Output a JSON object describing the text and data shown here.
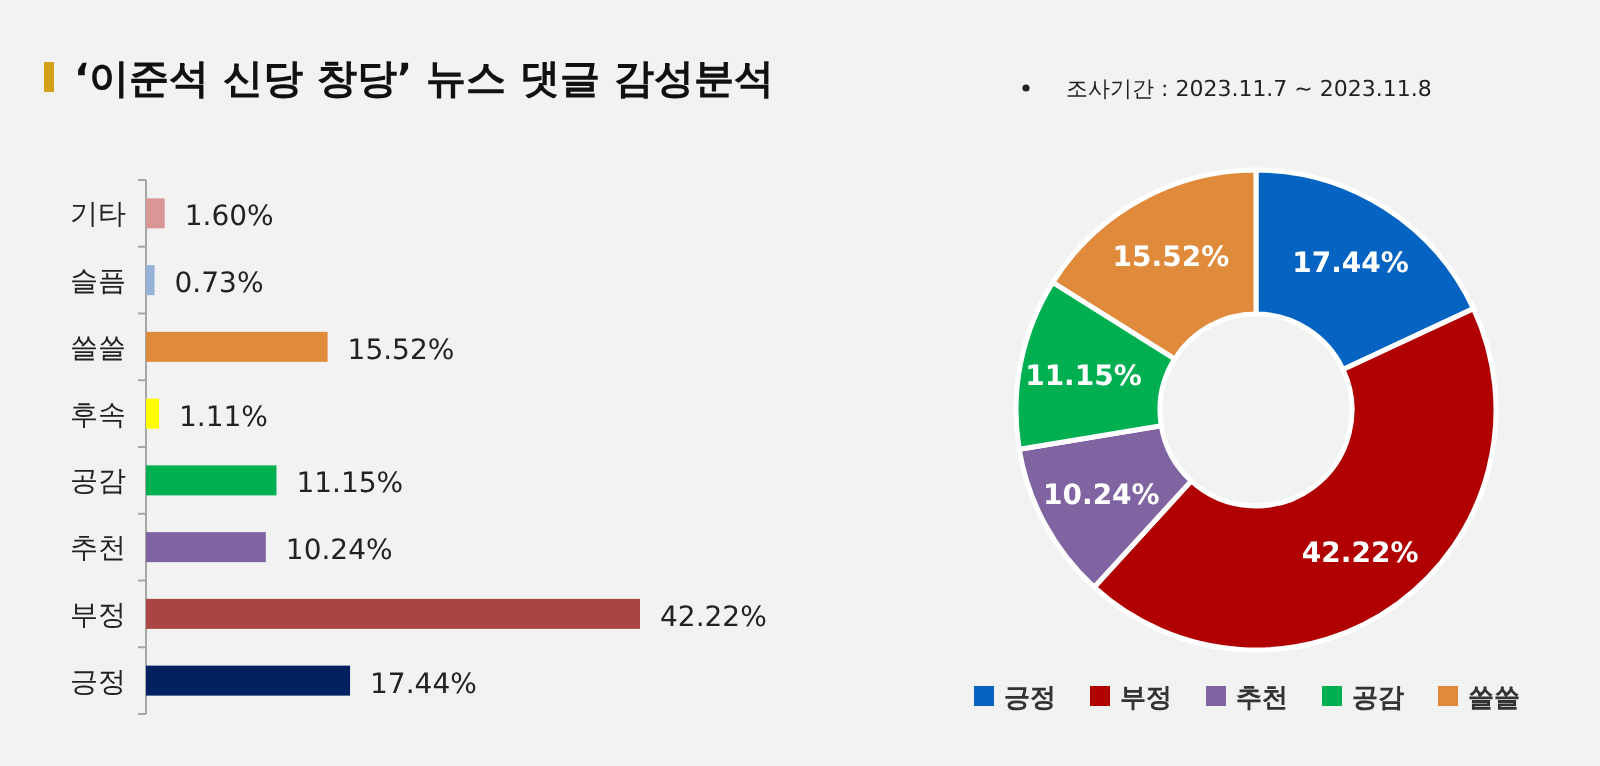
{
  "chart_data": [
    {
      "type": "bar",
      "title": "‘이준석 신당 창당’ 뉴스 댓글 감성분석",
      "orientation": "horizontal",
      "categories": [
        "기타",
        "슬픔",
        "쓸쓸",
        "후속",
        "공감",
        "추천",
        "부정",
        "긍정"
      ],
      "values": [
        1.6,
        0.73,
        15.52,
        1.11,
        11.15,
        10.24,
        42.22,
        17.44
      ],
      "colors": [
        "#d99694",
        "#95b3d7",
        "#e08a3c",
        "#ffff00",
        "#00b050",
        "#8064a2",
        "#a94643",
        "#002060"
      ],
      "value_labels": [
        "1.60%",
        "0.73%",
        "15.52%",
        "1.11%",
        "11.15%",
        "10.24%",
        "42.22%",
        "17.44%"
      ]
    },
    {
      "type": "donut",
      "annotations": [
        "조사기간 : 2023.11.7 ~ 2023.11.8"
      ],
      "categories": [
        "긍정",
        "부정",
        "추천",
        "공감",
        "쓸쓸"
      ],
      "values": [
        17.44,
        42.22,
        10.24,
        11.15,
        15.52
      ],
      "colors": [
        "#0563c1",
        "#b00000",
        "#8064a2",
        "#00b050",
        "#e08a3c"
      ],
      "value_labels": [
        "17.44%",
        "42.22%",
        "10.24%",
        "11.15%",
        "15.52%"
      ],
      "legend": "bottom"
    }
  ]
}
